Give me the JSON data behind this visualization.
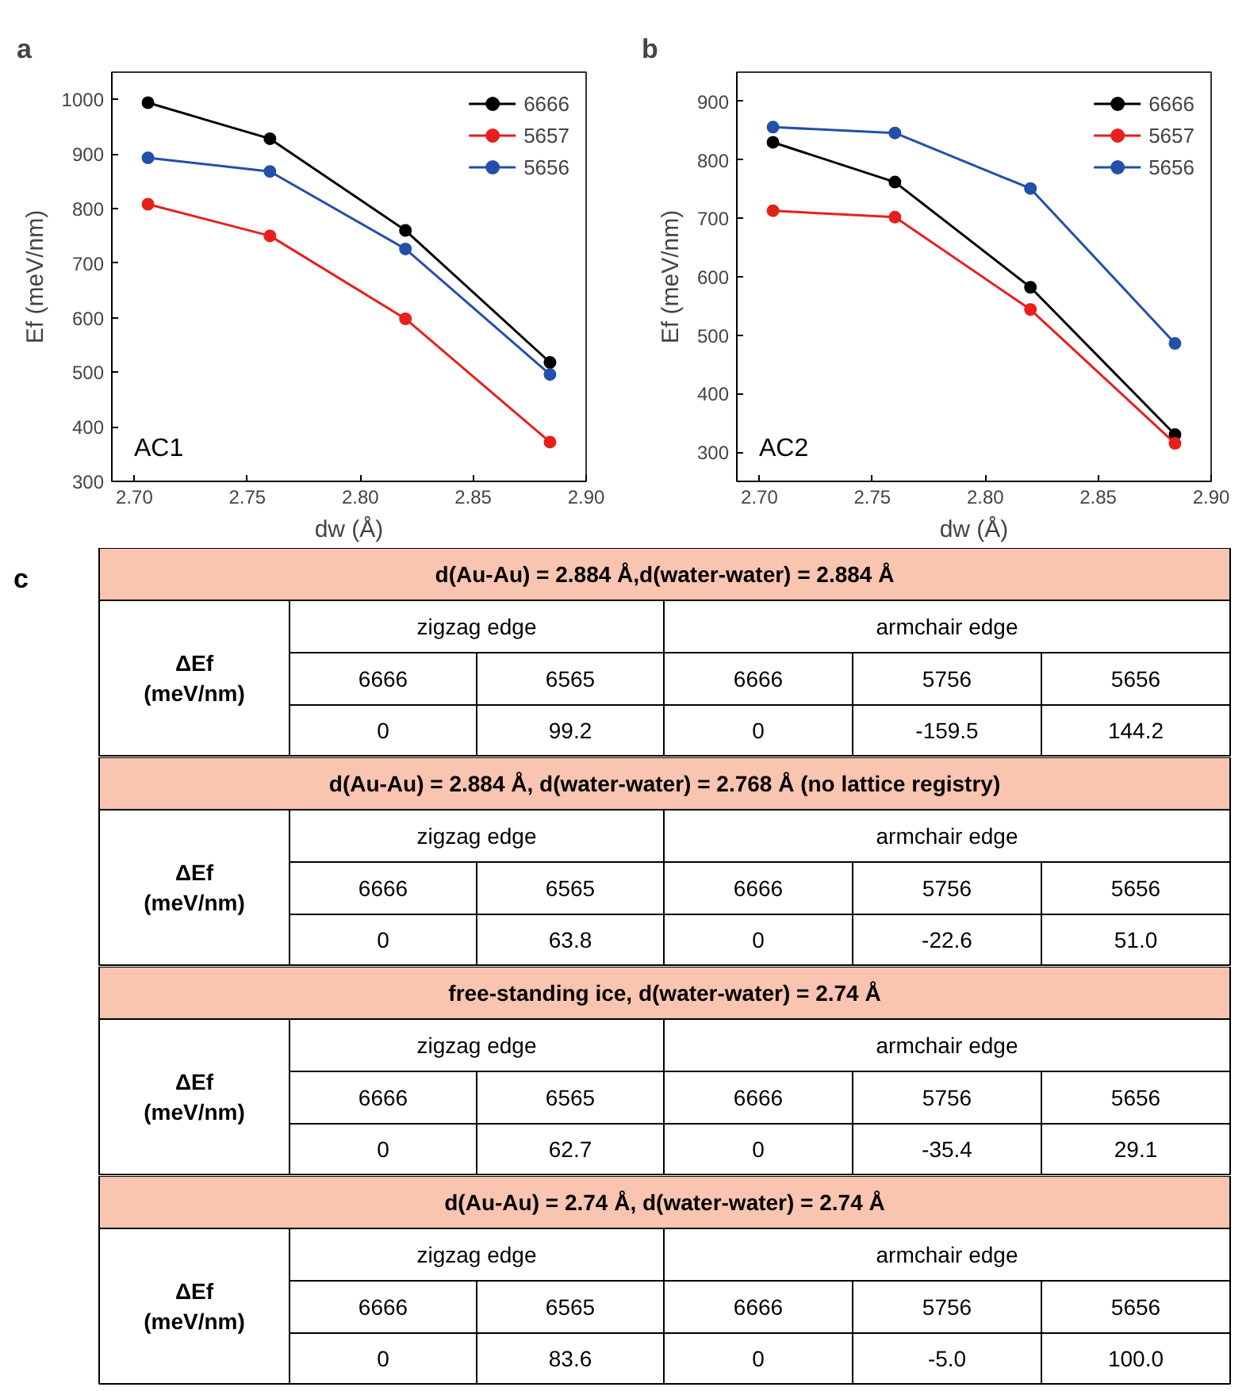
{
  "chart_data": [
    {
      "type": "line",
      "xlabel": "dw (Å)",
      "ylabel": "Ef (meV/nm)",
      "annotations": [
        "a",
        "AC1"
      ],
      "x": [
        2.706,
        2.76,
        2.82,
        2.884
      ],
      "xlim": [
        2.69,
        2.9
      ],
      "ylim": [
        300,
        1050
      ],
      "xticks": [
        {
          "value": 2.7,
          "label": "2.70"
        },
        {
          "value": 2.75,
          "label": "2.75"
        },
        {
          "value": 2.8,
          "label": "2.80"
        },
        {
          "value": 2.85,
          "label": "2.85"
        },
        {
          "value": 2.9,
          "label": "2.90"
        }
      ],
      "yticks": [
        300,
        400,
        500,
        600,
        700,
        800,
        900,
        1000
      ],
      "marker": "circle",
      "legend": "top right",
      "grid": false,
      "series": [
        {
          "name": "6666",
          "color": "#000000",
          "values": [
            994,
            928,
            760,
            518
          ]
        },
        {
          "name": "5657",
          "color": "#e8201c",
          "values": [
            808,
            750,
            598,
            372
          ]
        },
        {
          "name": "5656",
          "color": "#2350a8",
          "values": [
            893,
            868,
            726,
            496
          ]
        }
      ]
    },
    {
      "type": "line",
      "xlabel": "dw (Å)",
      "ylabel": "Ef (meV/nm)",
      "annotations": [
        "b",
        "AC2"
      ],
      "x": [
        2.706,
        2.76,
        2.82,
        2.884
      ],
      "xlim": [
        2.69,
        2.9
      ],
      "ylim": [
        250,
        950
      ],
      "xticks": [
        {
          "value": 2.7,
          "label": "2.70"
        },
        {
          "value": 2.75,
          "label": "2.75"
        },
        {
          "value": 2.8,
          "label": "2.80"
        },
        {
          "value": 2.85,
          "label": "2.85"
        },
        {
          "value": 2.9,
          "label": "2.90"
        }
      ],
      "yticks": [
        300,
        400,
        500,
        600,
        700,
        800,
        900
      ],
      "marker": "circle",
      "legend": "top right",
      "grid": false,
      "series": [
        {
          "name": "6666",
          "color": "#000000",
          "values": [
            830,
            762,
            582,
            330
          ]
        },
        {
          "name": "5657",
          "color": "#e8201c",
          "values": [
            713,
            702,
            544,
            315
          ]
        },
        {
          "name": "5656",
          "color": "#2350a8",
          "values": [
            856,
            846,
            751,
            486
          ]
        }
      ]
    },
    {
      "type": "other",
      "title": "d(Au-Au) = 2.884 Å,d(water-water) = 2.884 Å",
      "ylabel": "ΔEf\n(meV/nm)",
      "annotations": [
        "c",
        "zigzag edge",
        "armchair edge"
      ],
      "categories": [
        "6666",
        "6565",
        "6666",
        "5756",
        "5656"
      ],
      "values": [
        0,
        99.2,
        0,
        -159.5,
        144.2
      ],
      "data_labels": true
    },
    {
      "type": "other",
      "title": "d(Au-Au) = 2.884 Å, d(water-water) = 2.768 Å (no lattice registry)",
      "ylabel": "ΔEf\n(meV/nm)",
      "annotations": [
        "zigzag edge",
        "armchair edge"
      ],
      "categories": [
        "6666",
        "6565",
        "6666",
        "5756",
        "5656"
      ],
      "values": [
        0,
        63.8,
        0,
        -22.6,
        51.0
      ],
      "value_labels": [
        "0",
        "63.8",
        "0",
        "-22.6",
        "51.0"
      ]
    },
    {
      "type": "other",
      "title": "free-standing ice, d(water-water) = 2.74 Å",
      "ylabel": "ΔEf\n(meV/nm)",
      "annotations": [
        "zigzag edge",
        "armchair edge"
      ],
      "categories": [
        "6666",
        "6565",
        "6666",
        "5756",
        "5656"
      ],
      "values": [
        0,
        62.7,
        0,
        -35.4,
        29.1
      ],
      "data_labels": true
    },
    {
      "type": "other",
      "title": "d(Au-Au) = 2.74 Å, d(water-water) = 2.74 Å",
      "ylabel": "ΔEf\n(meV/nm)",
      "annotations": [
        "zigzag edge",
        "armchair edge"
      ],
      "categories": [
        "6666",
        "6565",
        "6666",
        "5756",
        "5656"
      ],
      "values": [
        0,
        83.6,
        0,
        -5.0,
        100.0
      ],
      "value_labels": [
        "0",
        "83.6",
        "0",
        "-5.0",
        "100.0"
      ]
    }
  ]
}
